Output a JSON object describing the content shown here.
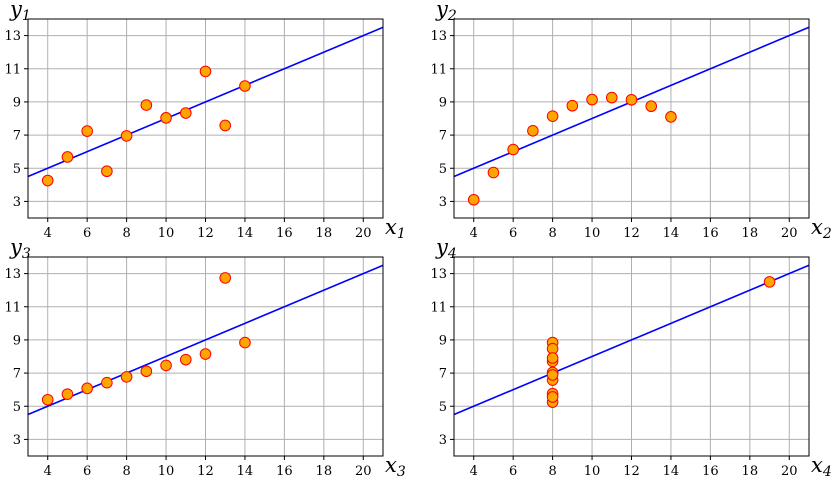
{
  "chart_data": [
    {
      "type": "scatter",
      "panel": "top-left",
      "xlabel": {
        "base": "x",
        "sub": "1"
      },
      "ylabel": {
        "base": "y",
        "sub": "1"
      },
      "xlim": [
        3,
        21
      ],
      "ylim": [
        2,
        14
      ],
      "xticks": [
        4,
        6,
        8,
        10,
        12,
        14,
        16,
        18,
        20
      ],
      "yticks": [
        3,
        5,
        7,
        9,
        11,
        13
      ],
      "grid": true,
      "x": [
        10,
        8,
        13,
        9,
        11,
        14,
        6,
        4,
        12,
        7,
        5
      ],
      "y": [
        8.04,
        6.95,
        7.58,
        8.81,
        8.33,
        9.96,
        7.24,
        4.26,
        10.84,
        4.82,
        5.68
      ],
      "fit_line": {
        "intercept": 3.0,
        "slope": 0.5,
        "color": "#0000ff"
      }
    },
    {
      "type": "scatter",
      "panel": "top-right",
      "xlabel": {
        "base": "x",
        "sub": "2"
      },
      "ylabel": {
        "base": "y",
        "sub": "2"
      },
      "xlim": [
        3,
        21
      ],
      "ylim": [
        2,
        14
      ],
      "xticks": [
        4,
        6,
        8,
        10,
        12,
        14,
        16,
        18,
        20
      ],
      "yticks": [
        3,
        5,
        7,
        9,
        11,
        13
      ],
      "grid": true,
      "x": [
        10,
        8,
        13,
        9,
        11,
        14,
        6,
        4,
        12,
        7,
        5
      ],
      "y": [
        9.14,
        8.14,
        8.74,
        8.77,
        9.26,
        8.1,
        6.13,
        3.1,
        9.13,
        7.26,
        4.74
      ],
      "fit_line": {
        "intercept": 3.0,
        "slope": 0.5,
        "color": "#0000ff"
      }
    },
    {
      "type": "scatter",
      "panel": "bottom-left",
      "xlabel": {
        "base": "x",
        "sub": "3"
      },
      "ylabel": {
        "base": "y",
        "sub": "3"
      },
      "xlim": [
        3,
        21
      ],
      "ylim": [
        2,
        14
      ],
      "xticks": [
        4,
        6,
        8,
        10,
        12,
        14,
        16,
        18,
        20
      ],
      "yticks": [
        3,
        5,
        7,
        9,
        11,
        13
      ],
      "grid": true,
      "x": [
        10,
        8,
        13,
        9,
        11,
        14,
        6,
        4,
        12,
        7,
        5
      ],
      "y": [
        7.46,
        6.77,
        12.74,
        7.11,
        7.81,
        8.84,
        6.08,
        5.39,
        8.15,
        6.42,
        5.73
      ],
      "fit_line": {
        "intercept": 3.0,
        "slope": 0.5,
        "color": "#0000ff"
      }
    },
    {
      "type": "scatter",
      "panel": "bottom-right",
      "xlabel": {
        "base": "x",
        "sub": "4"
      },
      "ylabel": {
        "base": "y",
        "sub": "4"
      },
      "xlim": [
        3,
        21
      ],
      "ylim": [
        2,
        14
      ],
      "xticks": [
        4,
        6,
        8,
        10,
        12,
        14,
        16,
        18,
        20
      ],
      "yticks": [
        3,
        5,
        7,
        9,
        11,
        13
      ],
      "grid": true,
      "x": [
        8,
        8,
        8,
        8,
        8,
        8,
        8,
        19,
        8,
        8,
        8
      ],
      "y": [
        6.58,
        5.76,
        7.71,
        8.84,
        8.47,
        7.04,
        5.25,
        12.5,
        5.56,
        7.91,
        6.89
      ],
      "fit_line": {
        "intercept": 3.0,
        "slope": 0.5,
        "color": "#0000ff"
      }
    }
  ],
  "style": {
    "marker_fill": "#ffa500",
    "marker_edge": "#ff0000",
    "grid_color": "#b0b0b0",
    "axis_color": "#000000",
    "line_color": "#0000ff"
  }
}
